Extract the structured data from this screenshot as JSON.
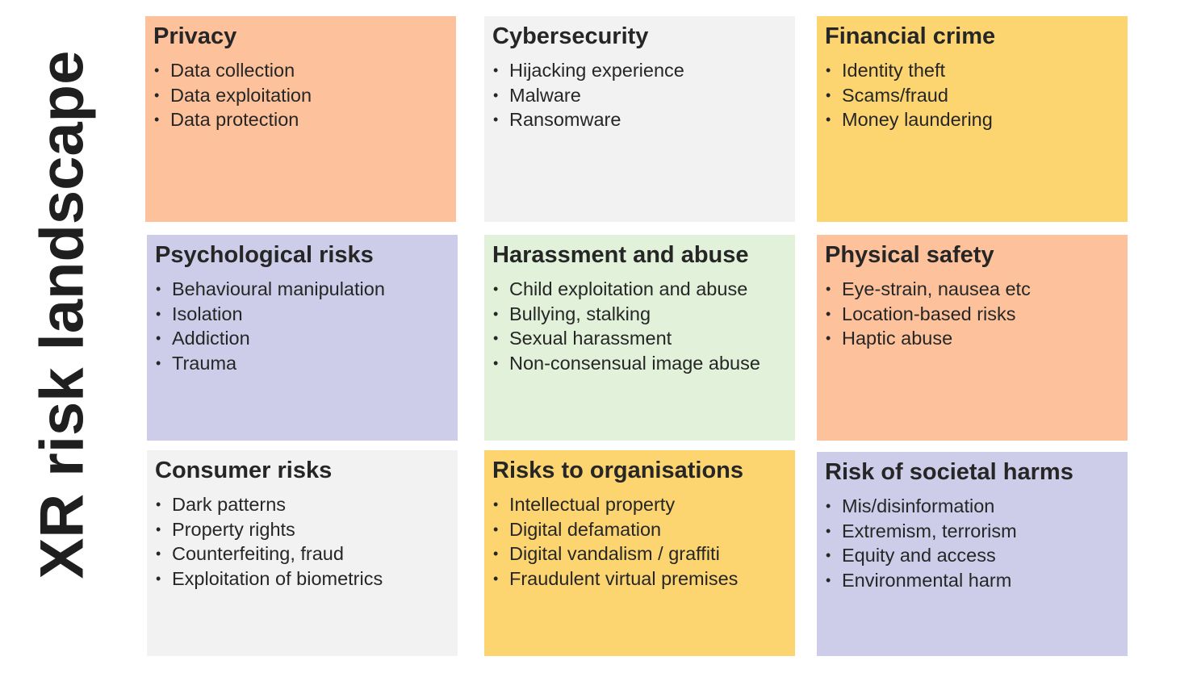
{
  "title": "XR risk landscape",
  "colors": {
    "orange": "#fdc29b",
    "grey": "#f2f2f2",
    "yellow": "#fcd571",
    "purple": "#cdcdea",
    "green": "#e1f1da"
  },
  "cards": [
    {
      "title": "Privacy",
      "color": "#fdc29b",
      "items": [
        "Data collection",
        "Data exploitation",
        "Data protection"
      ]
    },
    {
      "title": "Cybersecurity",
      "color": "#f2f2f2",
      "items": [
        "Hijacking experience",
        "Malware",
        "Ransomware"
      ]
    },
    {
      "title": "Financial crime",
      "color": "#fcd571",
      "items": [
        "Identity theft",
        "Scams/fraud",
        "Money laundering"
      ]
    },
    {
      "title": "Psychological risks",
      "color": "#cdcdea",
      "items": [
        "Behavioural manipulation",
        "Isolation",
        "Addiction",
        "Trauma"
      ]
    },
    {
      "title": "Harassment and abuse",
      "color": "#e1f1da",
      "items": [
        "Child exploitation and abuse",
        "Bullying, stalking",
        "Sexual harassment",
        "Non-consensual image abuse"
      ]
    },
    {
      "title": "Physical safety",
      "color": "#fdc29b",
      "items": [
        "Eye-strain, nausea etc",
        "Location-based risks",
        "Haptic abuse"
      ]
    },
    {
      "title": "Consumer risks",
      "color": "#f2f2f2",
      "items": [
        "Dark patterns",
        "Property rights",
        "Counterfeiting, fraud",
        "Exploitation of biometrics"
      ]
    },
    {
      "title": "Risks to organisations",
      "color": "#fcd571",
      "items": [
        "Intellectual property",
        "Digital defamation",
        "Digital vandalism / graffiti",
        "Fraudulent virtual premises"
      ]
    },
    {
      "title": "Risk of societal harms",
      "color": "#cdcdea",
      "items": [
        "Mis/disinformation",
        "Extremism, terrorism",
        "Equity and access",
        "Environmental harm"
      ]
    }
  ]
}
